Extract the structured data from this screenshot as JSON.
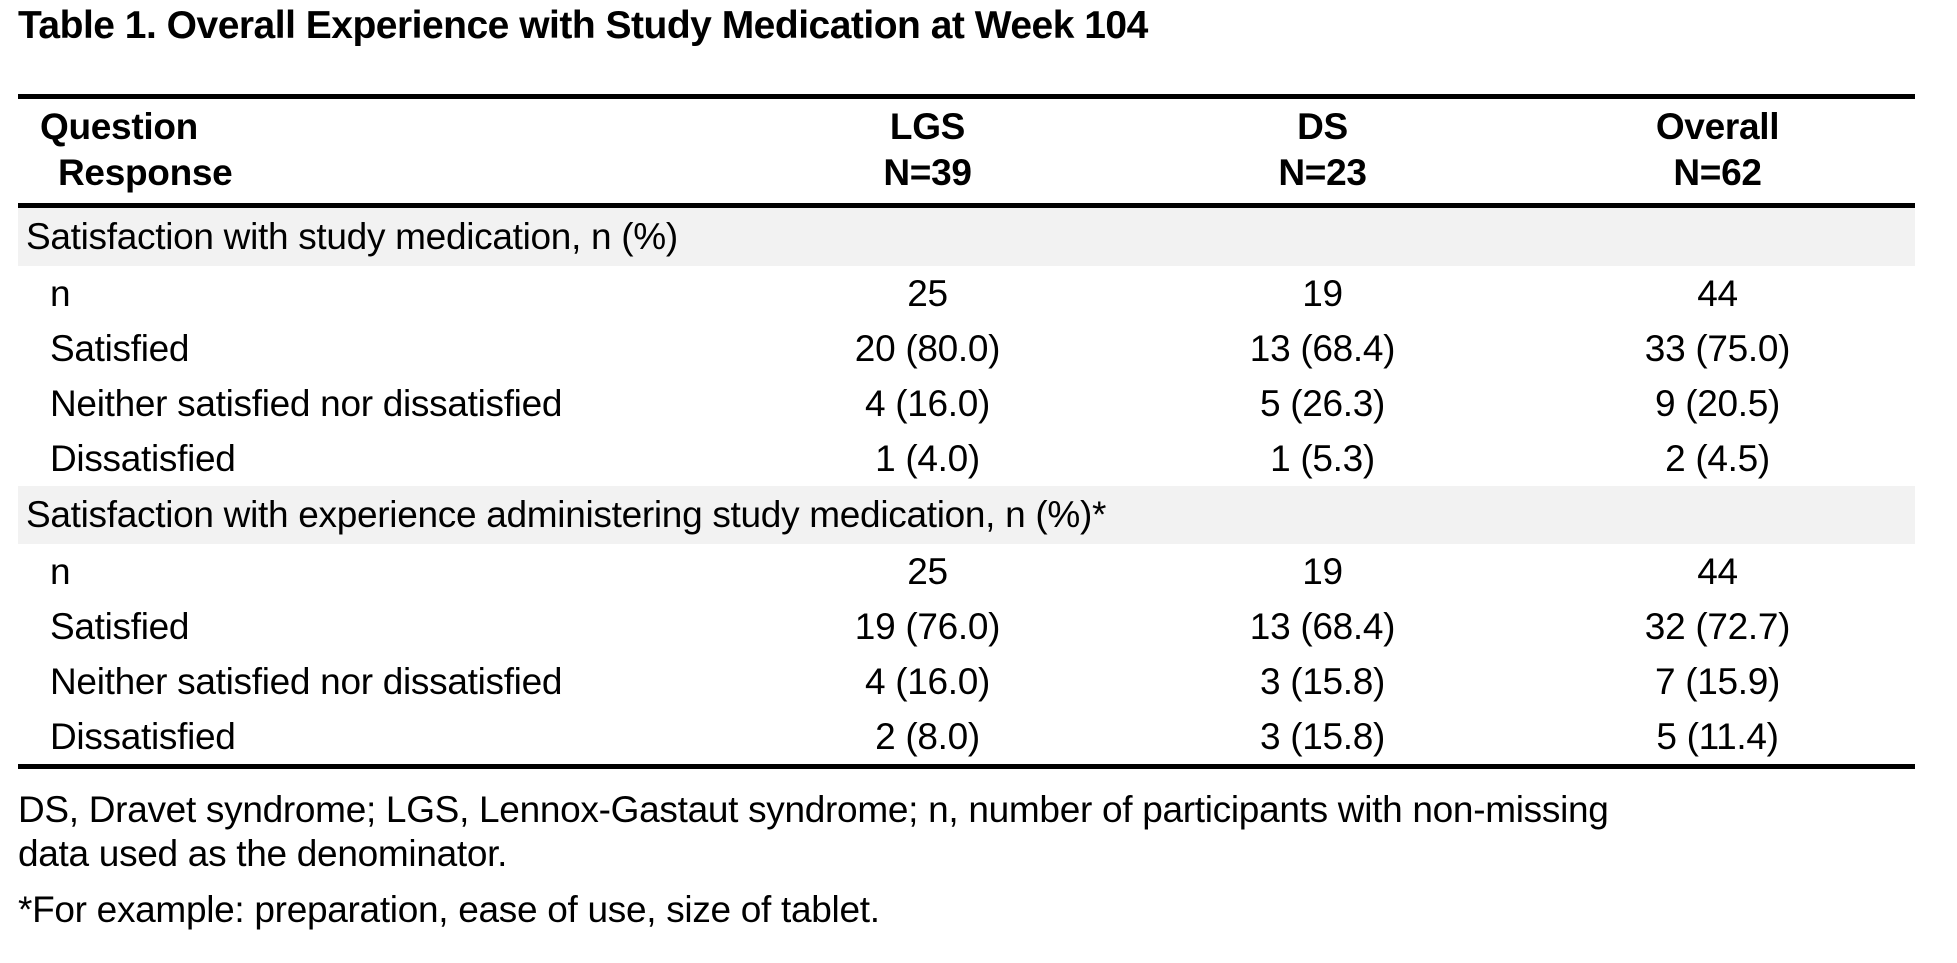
{
  "title": "Table 1. Overall Experience with Study Medication at Week 104",
  "colors": {
    "section_band_bg": "#f2f2f2",
    "rule": "#000000",
    "text": "#000000"
  },
  "table": {
    "header": {
      "col1_line1": "Question",
      "col1_line2": "Response",
      "cols": [
        {
          "line1": "LGS",
          "line2": "N=39"
        },
        {
          "line1": "DS",
          "line2": "N=23"
        },
        {
          "line1": "Overall",
          "line2": "N=62"
        }
      ]
    },
    "sections": [
      {
        "heading": "Satisfaction with study medication, n (%)",
        "rows": [
          {
            "label": "n",
            "values": [
              "25",
              "19",
              "44"
            ]
          },
          {
            "label": "Satisfied",
            "values": [
              "20 (80.0)",
              "13 (68.4)",
              "33 (75.0)"
            ]
          },
          {
            "label": "Neither satisfied nor dissatisfied",
            "values": [
              "4 (16.0)",
              "5 (26.3)",
              "9 (20.5)"
            ]
          },
          {
            "label": "Dissatisfied",
            "values": [
              "1 (4.0)",
              "1 (5.3)",
              "2 (4.5)"
            ]
          }
        ]
      },
      {
        "heading": "Satisfaction with experience administering study medication, n (%)*",
        "rows": [
          {
            "label": "n",
            "values": [
              "25",
              "19",
              "44"
            ]
          },
          {
            "label": "Satisfied",
            "values": [
              "19 (76.0)",
              "13 (68.4)",
              "32 (72.7)"
            ]
          },
          {
            "label": "Neither satisfied nor dissatisfied",
            "values": [
              "4 (16.0)",
              "3 (15.8)",
              "7 (15.9)"
            ]
          },
          {
            "label": "Dissatisfied",
            "values": [
              "2 (8.0)",
              "3 (15.8)",
              "5 (11.4)"
            ]
          }
        ]
      }
    ]
  },
  "footnotes": {
    "abbrev_lines": [
      "DS, Dravet syndrome; LGS, Lennox-Gastaut syndrome; n, number of participants with non-missing",
      "data used as the denominator."
    ],
    "asterisk": "*For example: preparation, ease of use, size of tablet."
  }
}
